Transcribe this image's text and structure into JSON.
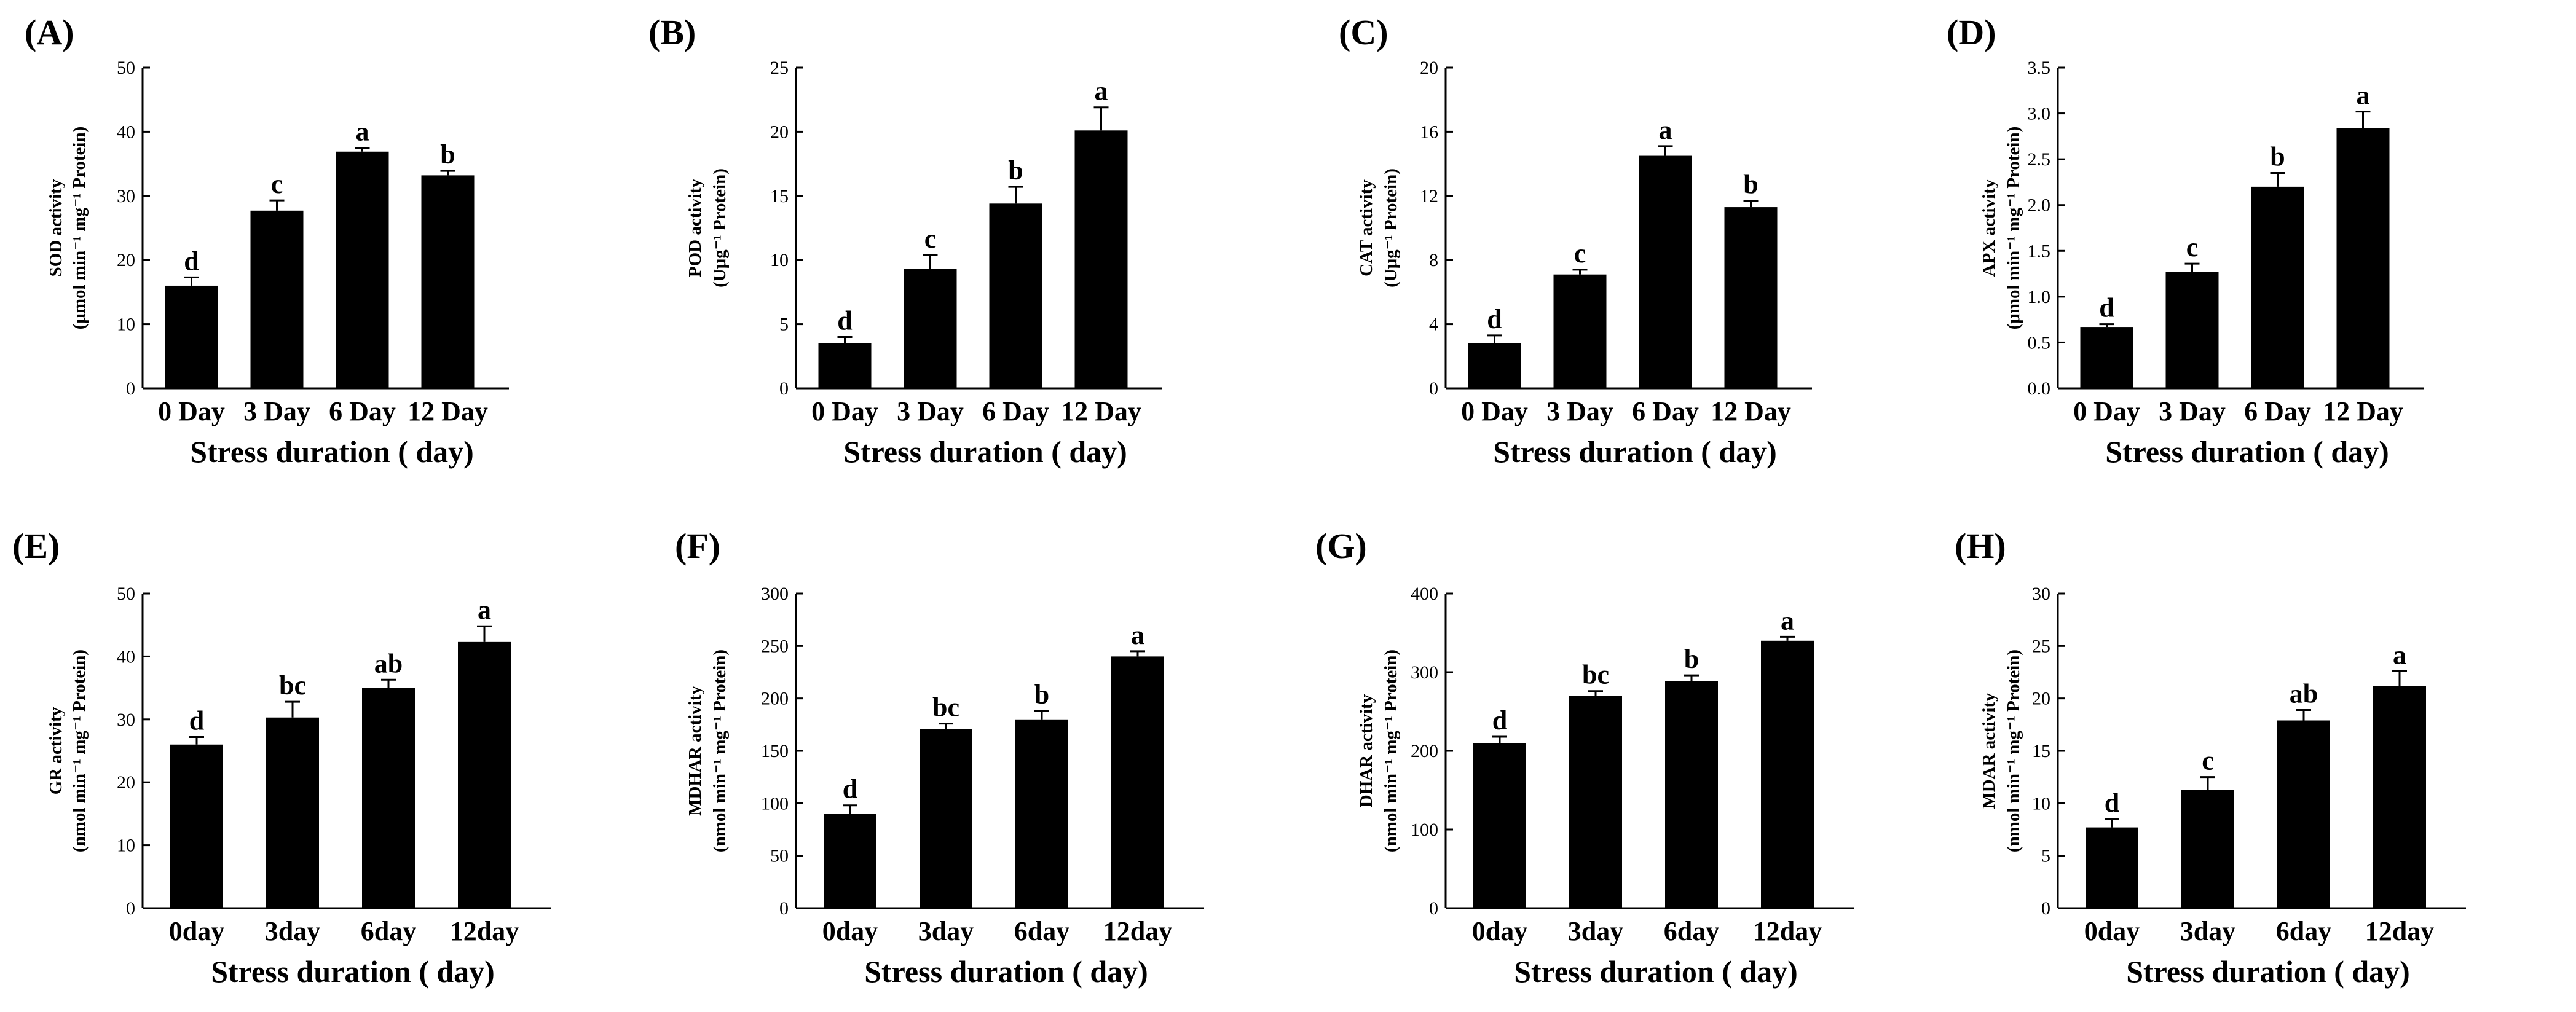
{
  "chart_data": [
    {
      "type": "bar",
      "panel_label": "(A)",
      "categories": [
        "0 Day",
        "3 Day",
        "6 Day",
        "12 Day"
      ],
      "values": [
        16,
        27.7,
        36.9,
        33.2
      ],
      "errors": [
        1.3,
        1.6,
        0.6,
        0.7
      ],
      "letters": [
        "d",
        "c",
        "a",
        "b"
      ],
      "ticks": [
        "0",
        "10",
        "20",
        "30",
        "40",
        "50"
      ],
      "ylim": [
        0,
        50
      ],
      "xlabel": "Stress duration ( day)",
      "ylabel": [
        "SOD activity",
        "(μmol min⁻¹ mg⁻¹ Protein)"
      ]
    },
    {
      "type": "bar",
      "panel_label": "(B)",
      "categories": [
        "0 Day",
        "3 Day",
        "6 Day",
        "12 Day"
      ],
      "values": [
        3.5,
        9.3,
        14.4,
        20.1
      ],
      "errors": [
        0.5,
        1.1,
        1.3,
        1.8
      ],
      "letters": [
        "d",
        "c",
        "b",
        "a"
      ],
      "ticks": [
        "0",
        "5",
        "10",
        "15",
        "20",
        "25"
      ],
      "ylim": [
        0,
        25
      ],
      "xlabel": "Stress duration ( day)",
      "ylabel": [
        "POD activity",
        "(Uμg⁻¹ Protein)"
      ]
    },
    {
      "type": "bar",
      "panel_label": "(C)",
      "categories": [
        "0 Day",
        "3 Day",
        "6 Day",
        "12 Day"
      ],
      "values": [
        2.8,
        7.1,
        14.5,
        11.3
      ],
      "errors": [
        0.5,
        0.3,
        0.6,
        0.4
      ],
      "letters": [
        "d",
        "c",
        "a",
        "b"
      ],
      "ticks": [
        "0",
        "4",
        "8",
        "12",
        "16",
        "20"
      ],
      "ylim": [
        0,
        20
      ],
      "xlabel": "Stress duration ( day)",
      "ylabel": [
        "CAT activity",
        "(Uμg⁻¹ Protein)"
      ]
    },
    {
      "type": "bar",
      "panel_label": "(D)",
      "categories": [
        "0 Day",
        "3 Day",
        "6 Day",
        "12 Day"
      ],
      "values": [
        0.67,
        1.27,
        2.2,
        2.84
      ],
      "errors": [
        0.03,
        0.09,
        0.15,
        0.18
      ],
      "letters": [
        "d",
        "c",
        "b",
        "a"
      ],
      "ticks": [
        "0.0",
        "0.5",
        "1.0",
        "1.5",
        "2.0",
        "2.5",
        "3.0",
        "3.5"
      ],
      "ylim": [
        0,
        3.5
      ],
      "xlabel": "Stress duration ( day)",
      "ylabel": [
        "APX activity",
        "(μmol min⁻¹ mg⁻¹ Protein)"
      ]
    },
    {
      "type": "bar",
      "panel_label": "(E)",
      "categories": [
        "0day",
        "3day",
        "6day",
        "12day"
      ],
      "values": [
        26,
        30.3,
        35,
        42.3
      ],
      "errors": [
        1.2,
        2.5,
        1.3,
        2.5
      ],
      "letters": [
        "d",
        "bc",
        "ab",
        "a"
      ],
      "ticks": [
        "0",
        "10",
        "20",
        "30",
        "40",
        "50"
      ],
      "ylim": [
        0,
        50
      ],
      "xlabel": "Stress duration ( day)",
      "ylabel": [
        "GR activity",
        "(nmol min⁻¹ mg⁻¹ Protein)"
      ]
    },
    {
      "type": "bar",
      "panel_label": "(F)",
      "categories": [
        "0day",
        "3day",
        "6day",
        "12day"
      ],
      "values": [
        90,
        171,
        180,
        240
      ],
      "errors": [
        8,
        5,
        8,
        5
      ],
      "letters": [
        "d",
        "bc",
        "b",
        "a"
      ],
      "ticks": [
        "0",
        "50",
        "100",
        "150",
        "200",
        "250",
        "300"
      ],
      "ylim": [
        0,
        300
      ],
      "xlabel": "Stress duration ( day)",
      "ylabel": [
        "MDHAR activity",
        "(nmol min⁻¹ mg⁻¹ Protein)"
      ]
    },
    {
      "type": "bar",
      "panel_label": "(G)",
      "categories": [
        "0day",
        "3day",
        "6day",
        "12day"
      ],
      "values": [
        210,
        270,
        289,
        340
      ],
      "errors": [
        8,
        6,
        7,
        5
      ],
      "letters": [
        "d",
        "bc",
        "b",
        "a"
      ],
      "ticks": [
        "0",
        "100",
        "200",
        "300",
        "400"
      ],
      "ylim": [
        0,
        400
      ],
      "xlabel": "Stress duration ( day)",
      "ylabel": [
        "DHAR activity",
        "(nmol min⁻¹ mg⁻¹ Protein)"
      ]
    },
    {
      "type": "bar",
      "panel_label": "(H)",
      "categories": [
        "0day",
        "3day",
        "6day",
        "12day"
      ],
      "values": [
        7.7,
        11.3,
        17.9,
        21.2
      ],
      "errors": [
        0.8,
        1.2,
        1,
        1.4
      ],
      "letters": [
        "d",
        "c",
        "ab",
        "a"
      ],
      "ticks": [
        "0",
        "5",
        "10",
        "15",
        "20",
        "25",
        "30"
      ],
      "ylim": [
        0,
        30
      ],
      "xlabel": "Stress duration ( day)",
      "ylabel": [
        "MDAR activity",
        "(nmol min⁻¹ mg⁻¹ Protein)"
      ]
    }
  ]
}
